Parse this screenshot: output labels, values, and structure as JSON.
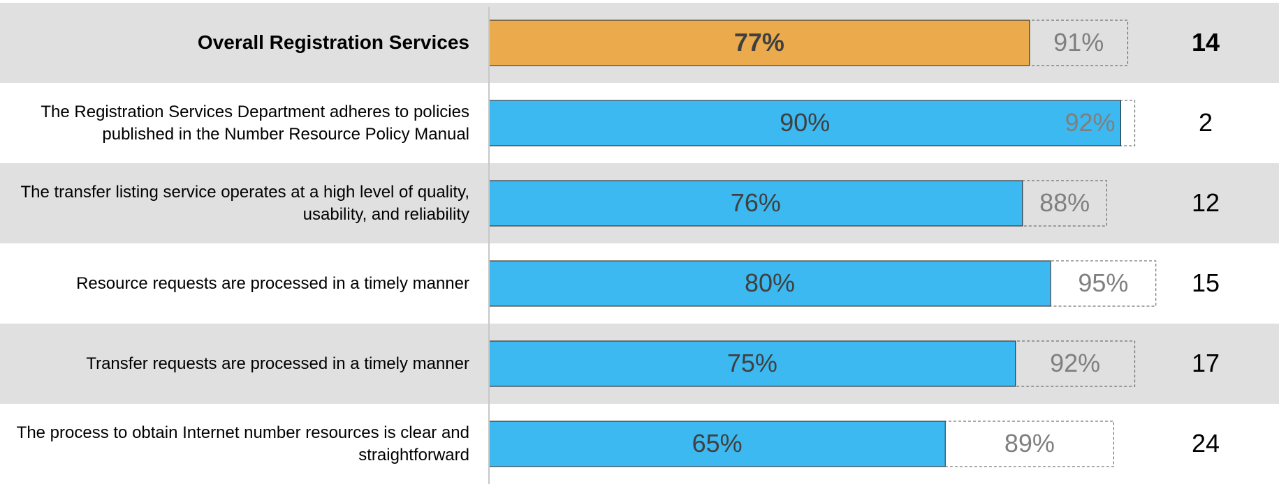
{
  "chart_data": {
    "type": "bar",
    "categories": [
      "Overall Registration Services",
      "The Registration Services Department adheres to policies published in the Number Resource Policy Manual",
      "The transfer listing service operates at a high level of quality, usability, and reliability",
      "Resource requests are processed in a timely manner",
      "Transfer requests are processed in a timely manner",
      "The process to obtain Internet number resources is clear and straightforward"
    ],
    "series": [
      {
        "color": "#3bb9f0",
        "values": [
          77,
          90,
          76,
          80,
          75,
          65
        ],
        "value_labels": [
          "77%",
          "90%",
          "76%",
          "80%",
          "75%",
          "65%"
        ]
      },
      {
        "style": "dashed",
        "values": [
          91,
          92,
          88,
          95,
          92,
          89
        ],
        "value_labels": [
          "91%",
          "92%",
          "88%",
          "95%",
          "92%",
          "89%"
        ]
      }
    ],
    "highlight": {
      "index": 0,
      "color": "#ebab4d"
    },
    "gaps": [
      14,
      2,
      12,
      15,
      17,
      24
    ],
    "xlim": [
      0,
      100
    ]
  }
}
